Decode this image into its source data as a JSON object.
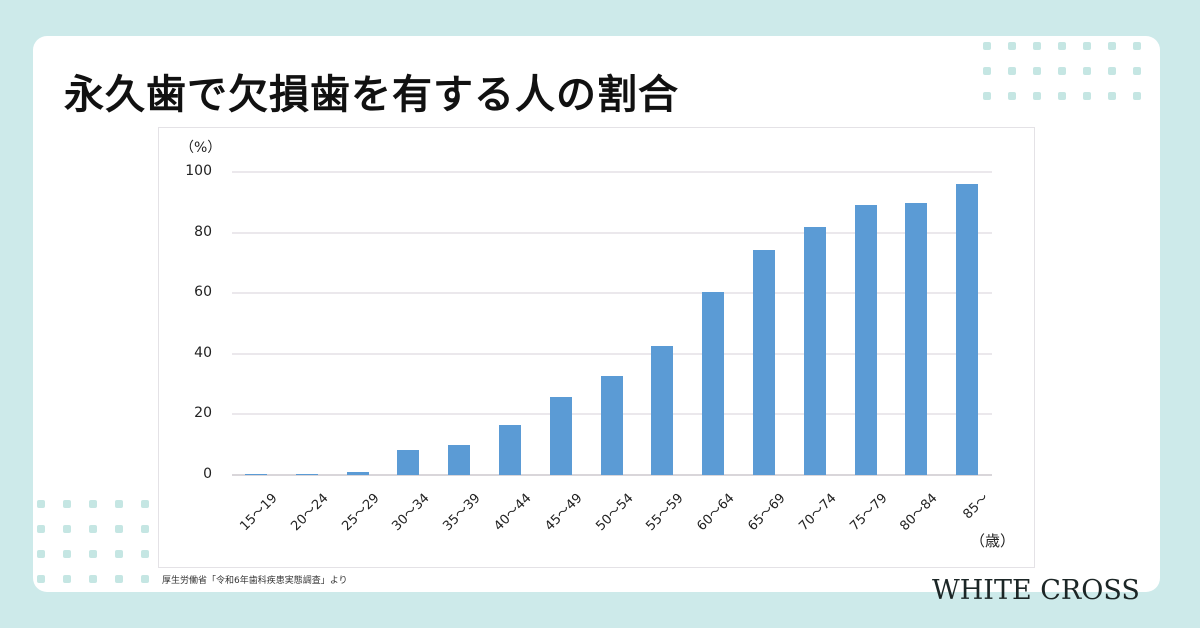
{
  "title": "永久歯で欠損歯を有する人の割合",
  "source": "厚生労働省「令和6年歯科疾患実態調査」より",
  "logo": "WHITE CROSS",
  "colors": {
    "background": "#cdeaea",
    "bar": "#5b9bd5",
    "card": "#ffffff"
  },
  "chart_data": {
    "type": "bar",
    "title": "永久歯で欠損歯を有する人の割合",
    "xlabel": "（歳）",
    "ylabel": "（%）",
    "ylim": [
      0,
      100
    ],
    "yticks": [
      "0",
      "20",
      "40",
      "60",
      "80",
      "100"
    ],
    "grid": true,
    "legend": "none",
    "categories": [
      "15〜19",
      "20〜24",
      "25〜29",
      "30〜34",
      "35〜39",
      "40〜44",
      "45〜49",
      "50〜54",
      "55〜59",
      "60〜64",
      "65〜69",
      "70〜74",
      "75〜79",
      "80〜84",
      "85〜"
    ],
    "values": [
      0.1,
      0.4,
      1.0,
      8.3,
      9.9,
      16.5,
      25.7,
      32.7,
      42.6,
      60.4,
      74.3,
      81.9,
      89.1,
      89.8,
      96.0
    ]
  }
}
